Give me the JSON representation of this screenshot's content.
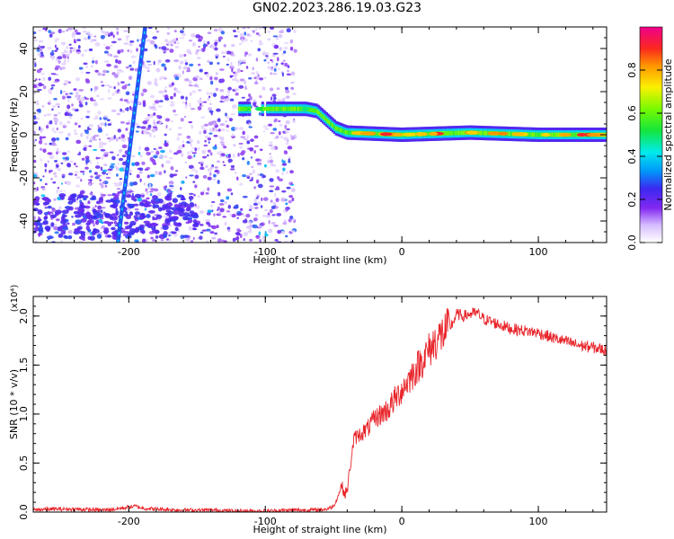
{
  "figure": {
    "title": "GN02.2023.286.19.03.G23"
  },
  "chart_data": [
    {
      "type": "heatmap",
      "xlabel": "Height of straight line (km)",
      "ylabel": "Frequency (Hz)",
      "xlim": [
        -270,
        150
      ],
      "ylim": [
        -50,
        50
      ],
      "x_ticks": [
        -200,
        -100,
        0,
        100
      ],
      "y_ticks": [
        -40,
        -20,
        0,
        20,
        40
      ],
      "x_tick_labels": [
        "-200",
        "-100",
        "0",
        "100"
      ],
      "y_tick_labels": [
        "-40",
        "-20",
        "0",
        "20",
        "40"
      ],
      "colorbar": {
        "label": "Normalized spectral amplitude",
        "range": [
          0,
          1
        ],
        "ticks": [
          0.0,
          0.2,
          0.4,
          0.6,
          0.8
        ],
        "tick_labels": [
          "0.0",
          "0.2",
          "0.4",
          "0.6",
          "0.8"
        ],
        "colormap": "rainbow (white-purple-blue-cyan-green-yellow-orange-red-magenta)"
      },
      "features": {
        "noise_region_x": [
          -270,
          -78
        ],
        "steep_line": {
          "x": [
            -208,
            -188
          ],
          "y": [
            -50,
            50
          ]
        },
        "main_track": {
          "x": [
            -120,
            -100,
            -70,
            -62,
            -55,
            -48,
            -40,
            0,
            50,
            100,
            150
          ],
          "y": [
            12,
            12,
            12,
            11,
            7,
            3,
            1,
            0,
            1,
            0,
            0
          ]
        }
      },
      "grid": false
    },
    {
      "type": "line",
      "xlabel": "Height of straight line (km)",
      "ylabel": "SNR (10 * v/v)",
      "y_multiplier": "(x10⁴)",
      "xlim": [
        -270,
        150
      ],
      "ylim": [
        0.0,
        2.2
      ],
      "x_ticks": [
        -200,
        -100,
        0,
        100
      ],
      "y_ticks": [
        0.0,
        0.5,
        1.0,
        1.5,
        2.0
      ],
      "x_tick_labels": [
        "-200",
        "-100",
        "0",
        "100"
      ],
      "y_tick_labels": [
        "0.0",
        "0.5",
        "1.0",
        "1.5",
        "2.0"
      ],
      "series": [
        {
          "color": "#e8242a",
          "x": [
            -270,
            -260,
            -240,
            -220,
            -210,
            -200,
            -195,
            -190,
            -180,
            -160,
            -140,
            -120,
            -100,
            -80,
            -65,
            -55,
            -50,
            -47,
            -44,
            -42,
            -40,
            -38,
            -35,
            -30,
            -25,
            -20,
            -15,
            -10,
            -5,
            0,
            5,
            10,
            15,
            20,
            25,
            30,
            35,
            38,
            40,
            45,
            50,
            55,
            60,
            70,
            80,
            90,
            100,
            110,
            120,
            130,
            140,
            150
          ],
          "y": [
            0.02,
            0.03,
            0.03,
            0.02,
            0.03,
            0.05,
            0.06,
            0.04,
            0.03,
            0.02,
            0.02,
            0.01,
            0.01,
            0.02,
            0.02,
            0.03,
            0.06,
            0.15,
            0.28,
            0.18,
            0.22,
            0.45,
            0.75,
            0.8,
            0.85,
            0.95,
            1.0,
            1.05,
            1.15,
            1.25,
            1.35,
            1.45,
            1.55,
            1.65,
            1.75,
            1.82,
            1.88,
            1.95,
            2.02,
            2.0,
            2.02,
            2.03,
            1.97,
            1.92,
            1.87,
            1.85,
            1.83,
            1.78,
            1.74,
            1.7,
            1.68,
            1.65
          ]
        }
      ],
      "grid": false
    }
  ]
}
